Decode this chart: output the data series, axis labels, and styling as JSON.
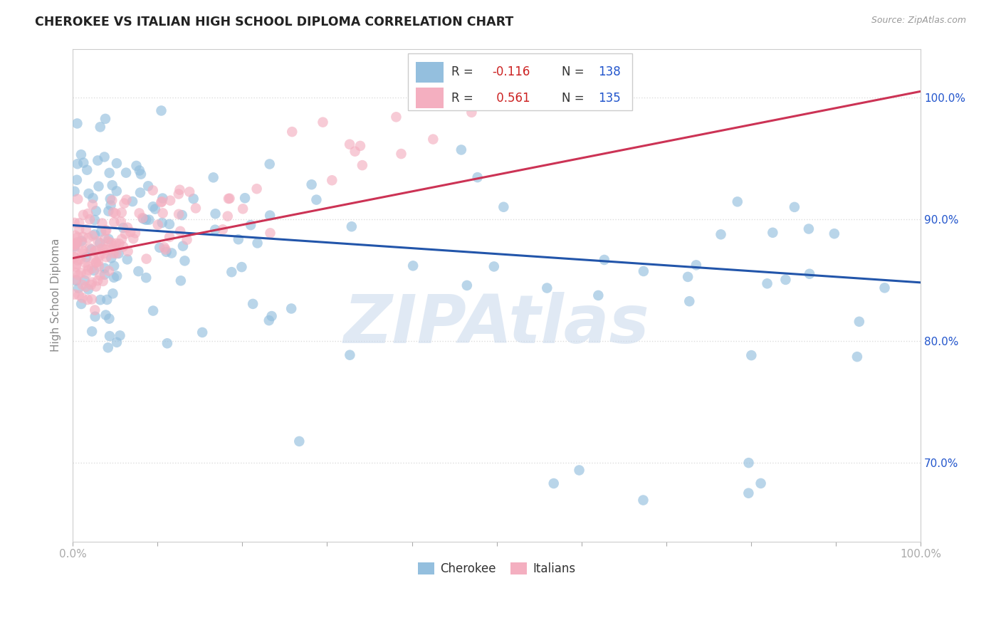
{
  "title": "CHEROKEE VS ITALIAN HIGH SCHOOL DIPLOMA CORRELATION CHART",
  "source": "Source: ZipAtlas.com",
  "ylabel": "High School Diploma",
  "watermark": "ZIPAtlas",
  "blue_color": "#94bfde",
  "pink_color": "#f4afc0",
  "blue_line_color": "#2255aa",
  "pink_line_color": "#cc3355",
  "right_yticks": [
    0.7,
    0.8,
    0.9,
    1.0
  ],
  "right_yticklabels": [
    "70.0%",
    "80.0%",
    "90.0%",
    "100.0%"
  ],
  "xmin": 0.0,
  "xmax": 1.0,
  "ymin": 0.635,
  "ymax": 1.04,
  "blue_line_x": [
    0.0,
    1.0
  ],
  "blue_line_y": [
    0.895,
    0.848
  ],
  "pink_line_x": [
    0.0,
    1.0
  ],
  "pink_line_y": [
    0.868,
    1.005
  ],
  "legend_r_color": "#cc2222",
  "legend_n_color": "#2255cc",
  "legend_text_color": "#333333",
  "grid_color": "#dddddd",
  "tick_color": "#aaaaaa"
}
